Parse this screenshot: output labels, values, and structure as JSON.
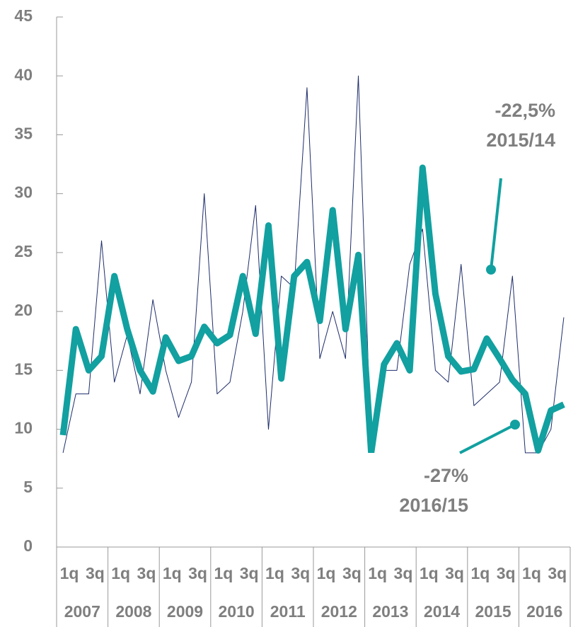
{
  "chart_data": {
    "type": "line",
    "categories": [
      "1q",
      null,
      "3q",
      null,
      "1q",
      null,
      "3q",
      null,
      "1q",
      null,
      "3q",
      null,
      "1q",
      null,
      "3q",
      null,
      "1q",
      null,
      "3q",
      null,
      "1q",
      null,
      "3q",
      null,
      "1q",
      null,
      "3q",
      null,
      "1q",
      null,
      "3q",
      null,
      "1q",
      null,
      "3q",
      null,
      "1q",
      null,
      "3q",
      null
    ],
    "years": [
      "2007",
      "2008",
      "2009",
      "2010",
      "2011",
      "2012",
      "2013",
      "2014",
      "2015",
      "2016"
    ],
    "series": [
      {
        "color": "#1f2d6b",
        "values": [
          8,
          13,
          13,
          26,
          14,
          18,
          13,
          21,
          15,
          11,
          14,
          30,
          13,
          14,
          20,
          29,
          10,
          23,
          22,
          39,
          16,
          20,
          16,
          40,
          8,
          15,
          15,
          24,
          27,
          15,
          14,
          24,
          12,
          13,
          14,
          23,
          8,
          8,
          10,
          19.5
        ]
      },
      {
        "color": "#12a0a0",
        "values": [
          9.5,
          18.5,
          15,
          16.2,
          23,
          18.5,
          15,
          13.2,
          17.8,
          15.8,
          16.2,
          18.7,
          17.3,
          18,
          23,
          18.1,
          27.3,
          14.3,
          23,
          24.2,
          19.2,
          28.6,
          18.5,
          24.8,
          8,
          15.5,
          17.3,
          15,
          32.2,
          21.5,
          16.2,
          14.9,
          15.1,
          17.7,
          16,
          14.2,
          13,
          8.2,
          11.6,
          12.1
        ]
      }
    ],
    "ylim": [
      0,
      45
    ],
    "yticks": [
      0,
      5,
      10,
      15,
      20,
      25,
      30,
      35,
      40,
      45
    ],
    "annotations": [
      {
        "lines": [
          "-22,5%",
          "2015/14"
        ]
      },
      {
        "lines": [
          "-27%",
          "2016/15"
        ]
      }
    ]
  }
}
